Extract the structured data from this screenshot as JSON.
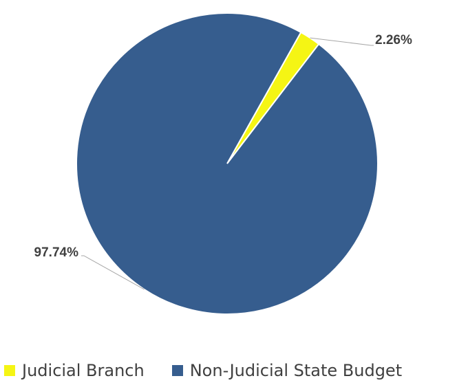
{
  "chart_data": {
    "type": "pie",
    "title": "",
    "series": [
      {
        "name": "Judicial Branch",
        "value": 2.26,
        "label": "2.26%",
        "color": "#f5f514"
      },
      {
        "name": "Non-Judicial State Budget",
        "value": 97.74,
        "label": "97.74%",
        "color": "#365d8e"
      }
    ],
    "legend_position": "bottom-left"
  }
}
